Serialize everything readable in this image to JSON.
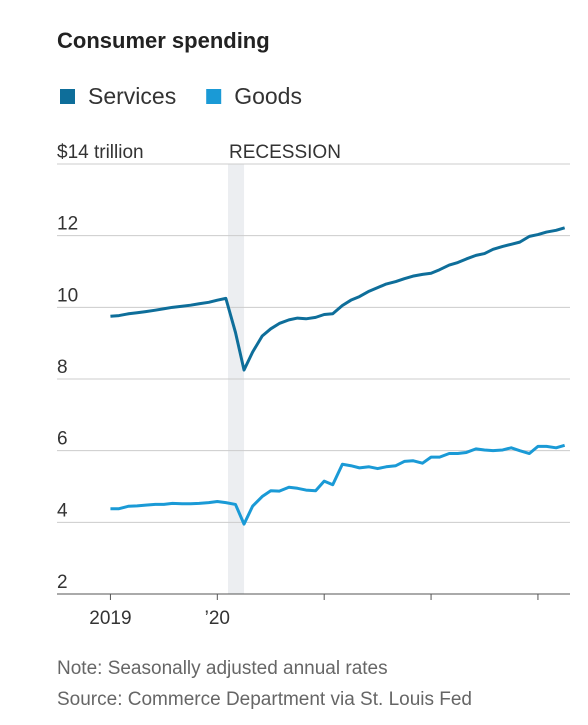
{
  "chart_data": {
    "type": "line",
    "title": "Consumer spending",
    "notes": [
      "Note: Seasonally adjusted annual rates",
      "Source: Commerce Department via St. Louis Fed"
    ],
    "recession": {
      "label": "RECESSION",
      "start": 2020.1,
      "end": 2020.25
    },
    "x": [
      2019,
      2019.08,
      2019.17,
      2019.25,
      2019.33,
      2019.42,
      2019.5,
      2019.58,
      2019.67,
      2019.75,
      2019.83,
      2019.92,
      2020,
      2020.08,
      2020.17,
      2020.25,
      2020.33,
      2020.42,
      2020.5,
      2020.58,
      2020.67,
      2020.75,
      2020.83,
      2020.92,
      2021,
      2021.08,
      2021.17,
      2021.25,
      2021.33,
      2021.42,
      2021.5,
      2021.58,
      2021.67,
      2021.75,
      2021.83,
      2021.92,
      2022,
      2022.08,
      2022.17,
      2022.25,
      2022.33,
      2022.42,
      2022.5,
      2022.58,
      2022.67,
      2022.75,
      2022.83,
      2022.92,
      2023,
      2023.08,
      2023.17,
      2023.25
    ],
    "series": [
      {
        "name": "Services",
        "color": "#0e6e9a",
        "values": [
          9.75,
          9.77,
          9.82,
          9.85,
          9.88,
          9.92,
          9.96,
          10.0,
          10.03,
          10.06,
          10.1,
          10.14,
          10.2,
          10.25,
          9.3,
          8.25,
          8.75,
          9.2,
          9.4,
          9.55,
          9.65,
          9.7,
          9.68,
          9.72,
          9.8,
          9.82,
          10.05,
          10.2,
          10.3,
          10.45,
          10.55,
          10.65,
          10.72,
          10.8,
          10.87,
          10.92,
          10.95,
          11.05,
          11.18,
          11.25,
          11.35,
          11.45,
          11.5,
          11.62,
          11.7,
          11.76,
          11.82,
          11.98,
          12.03,
          12.1,
          12.15,
          12.22
        ]
      },
      {
        "name": "Goods",
        "color": "#1a9ad6",
        "values": [
          4.38,
          4.38,
          4.45,
          4.46,
          4.48,
          4.5,
          4.5,
          4.53,
          4.52,
          4.52,
          4.53,
          4.55,
          4.58,
          4.55,
          4.5,
          3.95,
          4.45,
          4.72,
          4.88,
          4.87,
          4.98,
          4.95,
          4.9,
          4.88,
          5.15,
          5.05,
          5.62,
          5.58,
          5.52,
          5.55,
          5.5,
          5.55,
          5.58,
          5.7,
          5.72,
          5.65,
          5.82,
          5.82,
          5.92,
          5.92,
          5.95,
          6.05,
          6.02,
          6.0,
          6.02,
          6.08,
          6.0,
          5.92,
          6.12,
          6.12,
          6.08,
          6.15
        ]
      }
    ],
    "xlim": [
      2018.5,
      2023.3
    ],
    "xticks": [
      2019,
      {
        "value": 2020,
        "label": "’20"
      },
      {
        "value": 2021,
        "label": null
      },
      {
        "value": 2022,
        "label": null
      },
      {
        "value": 2023,
        "label": null
      }
    ],
    "ylim": [
      2,
      14
    ],
    "yticks": [
      2,
      4,
      6,
      8,
      10,
      12,
      {
        "value": 14,
        "label": "$14 trillion"
      }
    ],
    "grid": true
  }
}
